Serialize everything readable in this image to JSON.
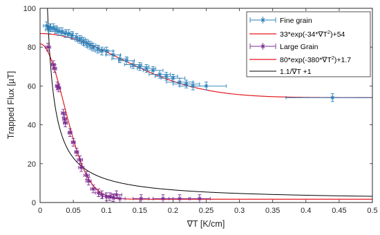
{
  "chart_data": {
    "type": "scatter",
    "xlabel": "∇T [K/cm]",
    "ylabel": "Trapped Flux [µT]",
    "xlim": [
      0,
      0.5
    ],
    "ylim": [
      0,
      100
    ],
    "xticks": [
      "0",
      "0.05",
      "0.1",
      "0.15",
      "0.2",
      "0.25",
      "0.3",
      "0.35",
      "0.4",
      "0.45",
      "0.5"
    ],
    "yticks": [
      "0",
      "20",
      "40",
      "60",
      "80",
      "100"
    ],
    "xtick_values": [
      0,
      0.05,
      0.1,
      0.15,
      0.2,
      0.25,
      0.3,
      0.35,
      0.4,
      0.45,
      0.5
    ],
    "ytick_values": [
      0,
      20,
      40,
      60,
      80,
      100
    ],
    "grid": false,
    "legend_position": "top-right",
    "series": [
      {
        "name": "Fine grain",
        "kind": "errorbar",
        "color": "#2a7fb8",
        "marker": "star",
        "points": [
          {
            "x": 0.01,
            "y": 91,
            "xerr": 0.005,
            "yerr": 2
          },
          {
            "x": 0.013,
            "y": 89,
            "xerr": 0.005,
            "yerr": 2
          },
          {
            "x": 0.016,
            "y": 90,
            "xerr": 0.005,
            "yerr": 2
          },
          {
            "x": 0.02,
            "y": 90,
            "xerr": 0.006,
            "yerr": 2
          },
          {
            "x": 0.024,
            "y": 89,
            "xerr": 0.006,
            "yerr": 2
          },
          {
            "x": 0.028,
            "y": 88,
            "xerr": 0.006,
            "yerr": 2
          },
          {
            "x": 0.033,
            "y": 88,
            "xerr": 0.007,
            "yerr": 2
          },
          {
            "x": 0.038,
            "y": 87,
            "xerr": 0.007,
            "yerr": 2
          },
          {
            "x": 0.043,
            "y": 87,
            "xerr": 0.007,
            "yerr": 2
          },
          {
            "x": 0.048,
            "y": 86,
            "xerr": 0.007,
            "yerr": 2
          },
          {
            "x": 0.055,
            "y": 85,
            "xerr": 0.008,
            "yerr": 2
          },
          {
            "x": 0.06,
            "y": 84,
            "xerr": 0.008,
            "yerr": 2
          },
          {
            "x": 0.065,
            "y": 83,
            "xerr": 0.008,
            "yerr": 2
          },
          {
            "x": 0.07,
            "y": 82,
            "xerr": 0.008,
            "yerr": 2
          },
          {
            "x": 0.075,
            "y": 81,
            "xerr": 0.009,
            "yerr": 2
          },
          {
            "x": 0.08,
            "y": 80,
            "xerr": 0.009,
            "yerr": 2
          },
          {
            "x": 0.087,
            "y": 79,
            "xerr": 0.01,
            "yerr": 2
          },
          {
            "x": 0.093,
            "y": 78,
            "xerr": 0.01,
            "yerr": 2
          },
          {
            "x": 0.1,
            "y": 78,
            "xerr": 0.01,
            "yerr": 2
          },
          {
            "x": 0.11,
            "y": 76,
            "xerr": 0.011,
            "yerr": 2
          },
          {
            "x": 0.12,
            "y": 74,
            "xerr": 0.012,
            "yerr": 2
          },
          {
            "x": 0.13,
            "y": 73,
            "xerr": 0.012,
            "yerr": 2
          },
          {
            "x": 0.14,
            "y": 71,
            "xerr": 0.013,
            "yerr": 2
          },
          {
            "x": 0.15,
            "y": 70,
            "xerr": 0.014,
            "yerr": 2
          },
          {
            "x": 0.16,
            "y": 69,
            "xerr": 0.014,
            "yerr": 2
          },
          {
            "x": 0.17,
            "y": 68,
            "xerr": 0.015,
            "yerr": 2
          },
          {
            "x": 0.18,
            "y": 66,
            "xerr": 0.016,
            "yerr": 2
          },
          {
            "x": 0.19,
            "y": 65,
            "xerr": 0.017,
            "yerr": 2
          },
          {
            "x": 0.2,
            "y": 64,
            "xerr": 0.018,
            "yerr": 2
          },
          {
            "x": 0.21,
            "y": 62,
            "xerr": 0.02,
            "yerr": 2
          },
          {
            "x": 0.22,
            "y": 61,
            "xerr": 0.02,
            "yerr": 2
          },
          {
            "x": 0.23,
            "y": 60,
            "xerr": 0.02,
            "yerr": 2
          },
          {
            "x": 0.25,
            "y": 60,
            "xerr": 0.03,
            "yerr": 2
          },
          {
            "x": 0.44,
            "y": 54,
            "xerr": 0.07,
            "yerr": 2
          }
        ]
      },
      {
        "name": "33*exp(-34*∇T²)+54",
        "kind": "line",
        "color": "#e4161b",
        "formula": {
          "a": 33,
          "b": 34,
          "c": 54,
          "type": "gauss"
        }
      },
      {
        "name": "Large Grain",
        "kind": "errorbar",
        "color": "#7a2a8f",
        "marker": "star",
        "points": [
          {
            "x": 0.012,
            "y": 80,
            "xerr": 0.004,
            "yerr": 2
          },
          {
            "x": 0.02,
            "y": 71,
            "xerr": 0.003,
            "yerr": 2
          },
          {
            "x": 0.022,
            "y": 69,
            "xerr": 0.003,
            "yerr": 2
          },
          {
            "x": 0.026,
            "y": 60,
            "xerr": 0.003,
            "yerr": 2
          },
          {
            "x": 0.028,
            "y": 59,
            "xerr": 0.003,
            "yerr": 2
          },
          {
            "x": 0.035,
            "y": 46,
            "xerr": 0.003,
            "yerr": 2
          },
          {
            "x": 0.037,
            "y": 43,
            "xerr": 0.003,
            "yerr": 2
          },
          {
            "x": 0.038,
            "y": 41,
            "xerr": 0.003,
            "yerr": 2
          },
          {
            "x": 0.045,
            "y": 36,
            "xerr": 0.003,
            "yerr": 2
          },
          {
            "x": 0.05,
            "y": 31,
            "xerr": 0.003,
            "yerr": 2
          },
          {
            "x": 0.055,
            "y": 26,
            "xerr": 0.003,
            "yerr": 2
          },
          {
            "x": 0.06,
            "y": 22,
            "xerr": 0.004,
            "yerr": 2
          },
          {
            "x": 0.062,
            "y": 18,
            "xerr": 0.004,
            "yerr": 2
          },
          {
            "x": 0.07,
            "y": 14,
            "xerr": 0.004,
            "yerr": 2
          },
          {
            "x": 0.073,
            "y": 11,
            "xerr": 0.004,
            "yerr": 2
          },
          {
            "x": 0.08,
            "y": 7,
            "xerr": 0.004,
            "yerr": 2
          },
          {
            "x": 0.088,
            "y": 5,
            "xerr": 0.005,
            "yerr": 2
          },
          {
            "x": 0.093,
            "y": 4,
            "xerr": 0.005,
            "yerr": 2
          },
          {
            "x": 0.1,
            "y": 3,
            "xerr": 0.006,
            "yerr": 2
          },
          {
            "x": 0.105,
            "y": 3,
            "xerr": 0.006,
            "yerr": 2
          },
          {
            "x": 0.11,
            "y": 2.5,
            "xerr": 0.007,
            "yerr": 2
          },
          {
            "x": 0.115,
            "y": 4,
            "xerr": 0.008,
            "yerr": 2
          },
          {
            "x": 0.12,
            "y": 2,
            "xerr": 0.008,
            "yerr": 2
          },
          {
            "x": 0.152,
            "y": 2,
            "xerr": 0.012,
            "yerr": 2
          },
          {
            "x": 0.185,
            "y": 2,
            "xerr": 0.015,
            "yerr": 2
          },
          {
            "x": 0.21,
            "y": 2,
            "xerr": 0.016,
            "yerr": 2
          },
          {
            "x": 0.24,
            "y": 2,
            "xerr": 0.016,
            "yerr": 2
          }
        ]
      },
      {
        "name": "80*exp(-380*∇T²)+1.7",
        "kind": "line",
        "color": "#e4161b",
        "formula": {
          "a": 80,
          "b": 380,
          "c": 1.7,
          "type": "gauss"
        }
      },
      {
        "name": "1.1/∇T +1",
        "kind": "line",
        "color": "#000000",
        "formula": {
          "a": 1.1,
          "c": 1,
          "type": "reciprocal"
        }
      }
    ],
    "legend": [
      {
        "series_index": 0,
        "label": "Fine grain"
      },
      {
        "series_index": 1,
        "label_main": "33*exp(-34*∇T",
        "label_sup": "2",
        "label_tail": ")+54"
      },
      {
        "series_index": 2,
        "label": "Large Grain"
      },
      {
        "series_index": 3,
        "label_main": "80*exp(-380*∇T",
        "label_sup": "2",
        "label_tail": ")+1.7"
      },
      {
        "series_index": 4,
        "label": "1.1/∇T +1"
      }
    ]
  }
}
